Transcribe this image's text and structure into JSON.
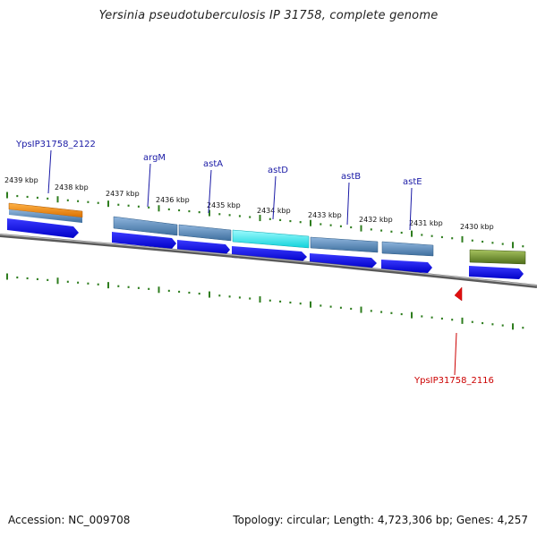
{
  "title": "Yersinia pseudotuberculosis IP 31758, complete genome",
  "footer": {
    "accession": "Accession: NC_009708",
    "summary": "Topology: circular; Length: 4,723,306 bp; Genes: 4,257"
  },
  "colors": {
    "label_blue": "#1a1aa6",
    "label_red": "#cc0000",
    "tick_green": "#2e7d1e",
    "gene_blue": "#0000ee",
    "backbone": "#808080"
  },
  "kbp_labels": [
    "2439 kbp",
    "2438 kbp",
    "2437 kbp",
    "2436 kbp",
    "2435 kbp",
    "2434 kbp",
    "2433 kbp",
    "2432 kbp",
    "2431 kbp",
    "2430 kbp"
  ],
  "genes": [
    {
      "label": "YpsIP31758_2122",
      "color": "#f08a1c",
      "highlight": false
    },
    {
      "label": "argM",
      "color": "#5b8fc4",
      "highlight": false
    },
    {
      "label": "astA",
      "color": "#5b8fc4",
      "highlight": false
    },
    {
      "label": "astD",
      "color": "#22e0e8",
      "highlight": true
    },
    {
      "label": "astB",
      "color": "#5b8fc4",
      "highlight": false
    },
    {
      "label": "astE",
      "color": "#5b8fc4",
      "highlight": false
    },
    {
      "label": "",
      "color": "#6e8f2a",
      "highlight": false
    }
  ],
  "reverse_feature": {
    "label": "YpsIP31758_2116",
    "color": "#e01010"
  }
}
